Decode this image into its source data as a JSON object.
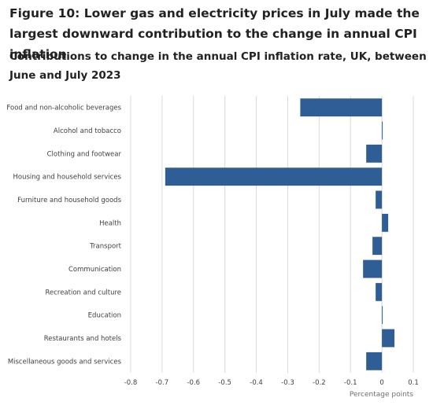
{
  "figure": {
    "title": "Figure 10: Lower gas and electricity prices in July made the largest downward contribution to the change in annual CPI inflation",
    "subtitle": "Contributions to change in the annual CPI inflation rate, UK, between June and July 2023"
  },
  "chart_data": {
    "type": "bar",
    "orientation": "horizontal",
    "categories": [
      "Food and non-alcoholic beverages",
      "Alcohol and tobacco",
      "Clothing and footwear",
      "Housing and household services",
      "Furniture and household goods",
      "Health",
      "Transport",
      "Communication",
      "Recreation and culture",
      "Education",
      "Restaurants and hotels",
      "Miscellaneous goods and services"
    ],
    "values": [
      -0.26,
      0.002,
      -0.05,
      -0.69,
      -0.02,
      0.02,
      -0.03,
      -0.06,
      -0.02,
      0.001,
      0.04,
      -0.05
    ],
    "xlabel": "Percentage points",
    "xlim": [
      -0.8,
      0.1
    ],
    "xticks": [
      -0.8,
      -0.7,
      -0.6,
      -0.5,
      -0.4,
      -0.3,
      -0.2,
      -0.1,
      0,
      0.1
    ],
    "xtick_labels": [
      "-0.8",
      "-0.7",
      "-0.6",
      "-0.5",
      "-0.4",
      "-0.3",
      "-0.2",
      "-0.1",
      "0",
      "0.1"
    ],
    "bar_color": "#2e5e95",
    "grid": "vertical"
  }
}
